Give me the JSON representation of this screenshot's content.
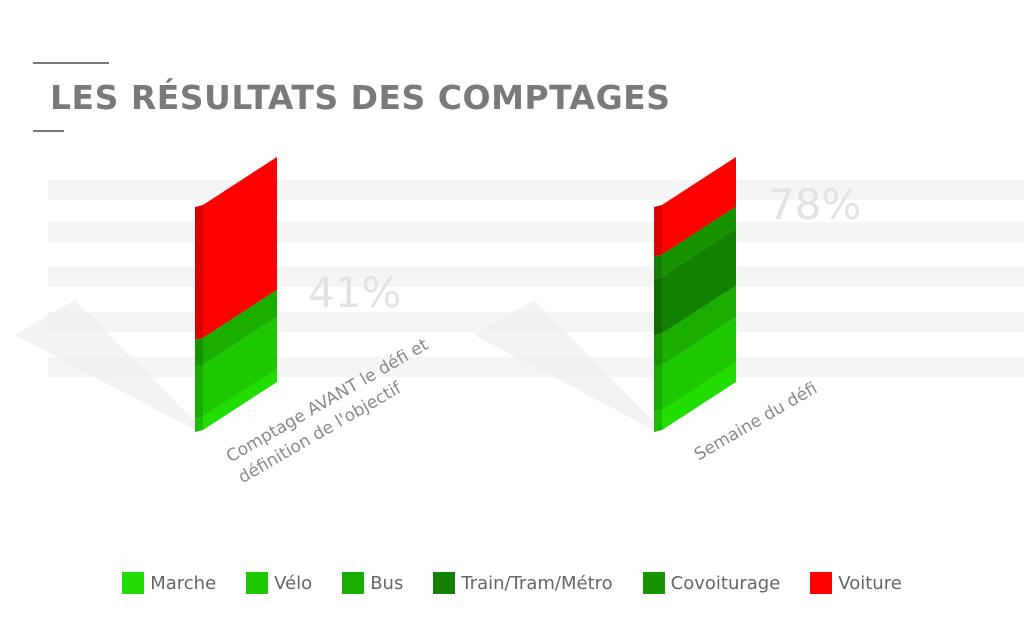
{
  "chart_data": {
    "type": "stacked-bar-3d",
    "title": "LES RÉSULTATS DES COMPTAGES",
    "categories": [
      "Comptage AVANT le défi et définition de l'objectif",
      "Semaine du défi"
    ],
    "series": [
      {
        "name": "Marche",
        "color": "#22dd00",
        "values": [
          6,
          9
        ]
      },
      {
        "name": "Vélo",
        "color": "#1ec800",
        "values": [
          23,
          20
        ]
      },
      {
        "name": "Bus",
        "color": "#1aae00",
        "values": [
          12,
          14
        ]
      },
      {
        "name": "Train/Tram/Métro",
        "color": "#128000",
        "values": [
          0,
          25
        ]
      },
      {
        "name": "Covoiturage",
        "color": "#179300",
        "values": [
          0,
          10
        ]
      },
      {
        "name": "Voiture",
        "color": "#ff0000",
        "values": [
          59,
          22
        ]
      }
    ],
    "annotations": [
      "41%",
      "78%"
    ],
    "ylim": [
      0,
      100
    ]
  }
}
